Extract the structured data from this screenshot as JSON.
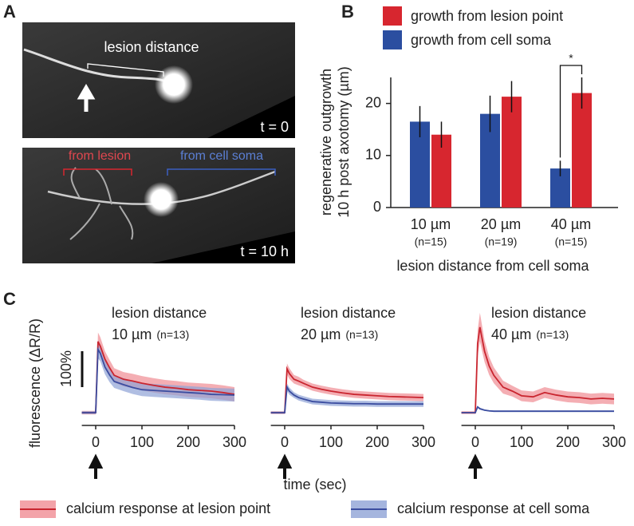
{
  "panels": {
    "a": "A",
    "b": "B",
    "c": "C"
  },
  "images": {
    "top": {
      "annotation": "lesion distance",
      "timestamp": "t = 0"
    },
    "bottom": {
      "from_lesion": "from lesion",
      "from_soma": "from cell soma",
      "timestamp": "t = 10 h"
    }
  },
  "shared": {
    "x_label": "time (sec)",
    "y_label": "fluorescence (ΔR/R)",
    "scale_bar": {
      "value": 100,
      "label": "100%"
    }
  },
  "chart_data": [
    {
      "type": "bar",
      "y_label": [
        "regenerative outgrowth",
        "10 h post axotomy (µm)"
      ],
      "x_label": "lesion distance from cell soma",
      "categories": [
        "10 µm",
        "20 µm",
        "40 µm"
      ],
      "n_labels": [
        "(n=15)",
        "(n=19)",
        "(n=15)"
      ],
      "series": [
        {
          "name": "growth from lesion point",
          "color": "#d7262f",
          "values": [
            14,
            21.3,
            22
          ],
          "errors": [
            2.5,
            3,
            3
          ]
        },
        {
          "name": "growth from cell soma",
          "color": "#2b4ea0",
          "values": [
            16.5,
            18,
            7.5
          ],
          "errors": [
            3,
            3.5,
            1.5
          ]
        }
      ],
      "ylim": [
        0,
        25
      ],
      "yticks": [
        0,
        10,
        20
      ],
      "significance": "*"
    },
    {
      "type": "line",
      "title": "lesion distance",
      "subtitle": "10 µm",
      "n_label": "(n=13)",
      "x": [
        -30,
        -5,
        0,
        5,
        10,
        20,
        30,
        40,
        60,
        80,
        100,
        125,
        150,
        175,
        200,
        225,
        250,
        275,
        300
      ],
      "xlim": [
        -30,
        300
      ],
      "xticks": [
        0,
        100,
        200,
        300
      ],
      "ylim": [
        -10,
        290
      ],
      "series": [
        {
          "name": "calcium response at lesion point",
          "color": "#c9252f",
          "band_color": "#f08c93",
          "values": [
            0,
            0,
            0,
            198,
            185,
            149,
            125,
            104,
            93,
            88,
            82,
            76,
            71,
            68,
            64,
            62,
            60,
            56,
            51
          ],
          "errors": [
            5,
            5,
            5,
            25,
            25,
            22,
            22,
            20,
            20,
            20,
            20,
            20,
            20,
            20,
            20,
            20,
            20,
            20,
            20
          ]
        },
        {
          "name": "calcium response at cell soma",
          "color": "#3b4da0",
          "band_color": "#8fa3d6",
          "values": [
            0,
            0,
            0,
            176,
            165,
            127,
            105,
            87,
            78,
            70,
            64,
            62,
            60,
            58,
            56,
            54,
            51,
            50,
            49
          ],
          "errors": [
            4,
            4,
            4,
            25,
            22,
            20,
            20,
            18,
            18,
            18,
            18,
            18,
            18,
            18,
            18,
            18,
            18,
            18,
            18
          ]
        }
      ]
    },
    {
      "type": "line",
      "title": "lesion distance",
      "subtitle": "20 µm",
      "n_label": "(n=13)",
      "x": [
        -30,
        -5,
        0,
        5,
        10,
        20,
        30,
        40,
        60,
        80,
        100,
        125,
        150,
        175,
        200,
        225,
        250,
        275,
        300
      ],
      "xlim": [
        -30,
        300
      ],
      "xticks": [
        0,
        100,
        200,
        300
      ],
      "ylim": [
        -10,
        290
      ],
      "series": [
        {
          "color": "#c9252f",
          "band_color": "#f08c93",
          "values": [
            0,
            0,
            0,
            122,
            109,
            93,
            88,
            82,
            71,
            65,
            60,
            55,
            51,
            49,
            47,
            45,
            44,
            43,
            42
          ],
          "errors": [
            4,
            4,
            4,
            15,
            15,
            12,
            12,
            10,
            10,
            10,
            10,
            10,
            10,
            10,
            10,
            10,
            10,
            10,
            10
          ]
        },
        {
          "color": "#3b4da0",
          "band_color": "#8fa3d6",
          "values": [
            0,
            0,
            0,
            71,
            60,
            49,
            42,
            38,
            31,
            29,
            27,
            26,
            25,
            25,
            24,
            24,
            24,
            24,
            24
          ],
          "errors": [
            3,
            3,
            3,
            10,
            10,
            8,
            8,
            8,
            8,
            8,
            8,
            8,
            8,
            8,
            8,
            8,
            8,
            8,
            8
          ]
        }
      ]
    },
    {
      "type": "line",
      "title": "lesion distance",
      "subtitle": "40 µm",
      "n_label": "(n=13)",
      "x": [
        -30,
        -5,
        0,
        5,
        10,
        20,
        30,
        40,
        60,
        80,
        100,
        125,
        150,
        175,
        200,
        225,
        250,
        275,
        300
      ],
      "xlim": [
        -30,
        300
      ],
      "xticks": [
        0,
        100,
        200,
        300
      ],
      "ylim": [
        -10,
        290
      ],
      "series": [
        {
          "color": "#c9252f",
          "band_color": "#f08c93",
          "values": [
            0,
            0,
            0,
            193,
            238,
            171,
            130,
            104,
            71,
            60,
            47,
            44,
            56,
            49,
            44,
            42,
            38,
            40,
            38
          ],
          "errors": [
            4,
            4,
            4,
            35,
            40,
            30,
            25,
            22,
            18,
            15,
            15,
            15,
            15,
            15,
            15,
            15,
            15,
            15,
            15
          ]
        },
        {
          "color": "#3b4da0",
          "band_color": "#8fa3d6",
          "values": [
            0,
            0,
            0,
            16,
            11,
            7,
            5,
            4,
            4,
            4,
            4,
            4,
            4,
            4,
            4,
            4,
            4,
            4,
            4
          ],
          "errors": [
            2,
            2,
            2,
            3,
            3,
            2,
            2,
            2,
            2,
            2,
            2,
            2,
            2,
            2,
            2,
            2,
            2,
            2,
            2
          ]
        }
      ]
    }
  ]
}
